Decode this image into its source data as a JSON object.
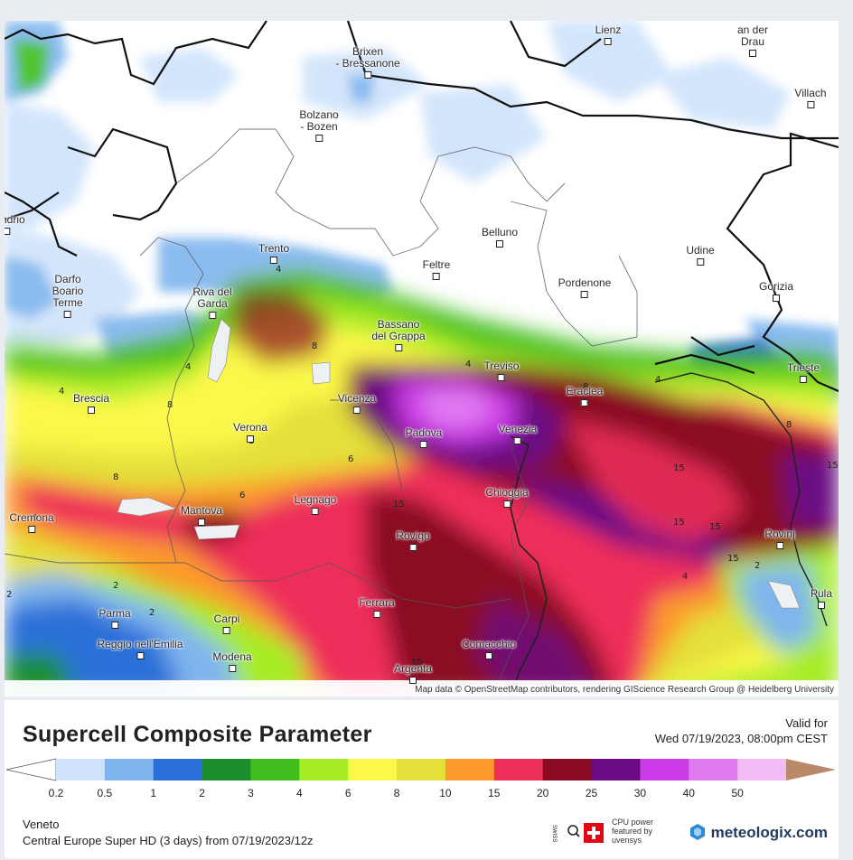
{
  "map": {
    "attribution": "Map data © OpenStreetMap contributors, rendering GIScience Research Group @ Heidelberg University",
    "cities": [
      {
        "name": "Lienz"
      },
      {
        "name": "an der\nDrau"
      },
      {
        "name": "Brixen\n- Bressanone"
      },
      {
        "name": "Villach"
      },
      {
        "name": "Bolzano\n- Bozen"
      },
      {
        "name": "Sondrio"
      },
      {
        "name": "Belluno"
      },
      {
        "name": "Udine"
      },
      {
        "name": "Trento"
      },
      {
        "name": "Feltre"
      },
      {
        "name": "Darfo\nBoario\nTerme"
      },
      {
        "name": "Pordenone"
      },
      {
        "name": "Gorizia"
      },
      {
        "name": "Riva del\nGarda"
      },
      {
        "name": "Bassano\ndel Grappa"
      },
      {
        "name": "Trieste"
      },
      {
        "name": "Treviso"
      },
      {
        "name": "Eraclea"
      },
      {
        "name": "Brescia"
      },
      {
        "name": "Vicenza"
      },
      {
        "name": "Verona"
      },
      {
        "name": "Padova"
      },
      {
        "name": "Venezia"
      },
      {
        "name": "Legnago"
      },
      {
        "name": "Chioggia"
      },
      {
        "name": "Cremona"
      },
      {
        "name": "Mantova"
      },
      {
        "name": "Rovigo"
      },
      {
        "name": "Rovinj"
      },
      {
        "name": "Pula"
      },
      {
        "name": "Parma"
      },
      {
        "name": "Carpi"
      },
      {
        "name": "Ferrara"
      },
      {
        "name": "Reggio nell'Emilia"
      },
      {
        "name": "Comacchio"
      },
      {
        "name": "Modena"
      },
      {
        "name": "Argenta"
      }
    ],
    "contour_labels": [
      "2",
      "4",
      "6",
      "8",
      "15",
      "4",
      "8",
      "6",
      "8",
      "15",
      "15",
      "15",
      "4",
      "8",
      "2",
      "4",
      "2",
      "15",
      "4",
      "4",
      "8",
      "15",
      "2",
      "4",
      "8",
      "15"
    ]
  },
  "footer": {
    "title": "Supercell Composite Parameter",
    "valid_label": "Valid for",
    "valid_value": "Wed 07/19/2023, 08:00pm CEST",
    "region": "Veneto",
    "model_run": "Central Europe Super HD (3 days) from  07/19/2023/12z",
    "cpu_text": [
      "CPU power",
      "featured by",
      "uvensys"
    ],
    "swiss_hd": "SWISS HD",
    "brand": "meteologix.com"
  },
  "legend": {
    "labels": [
      "0.2",
      "0.5",
      "1",
      "2",
      "3",
      "4",
      "6",
      "8",
      "10",
      "15",
      "20",
      "25",
      "30",
      "40",
      "50"
    ],
    "colors": [
      "#cfe3fb",
      "#7fb5ee",
      "#2a6fd8",
      "#1d8e2e",
      "#3fbe1e",
      "#a6ec25",
      "#fbf84a",
      "#e3e03a",
      "#fb9a2a",
      "#ee2f5a",
      "#8a0a22",
      "#6b0a84",
      "#cc3be8",
      "#e17cf0",
      "#f2bbf6",
      "#b88a6a"
    ]
  }
}
